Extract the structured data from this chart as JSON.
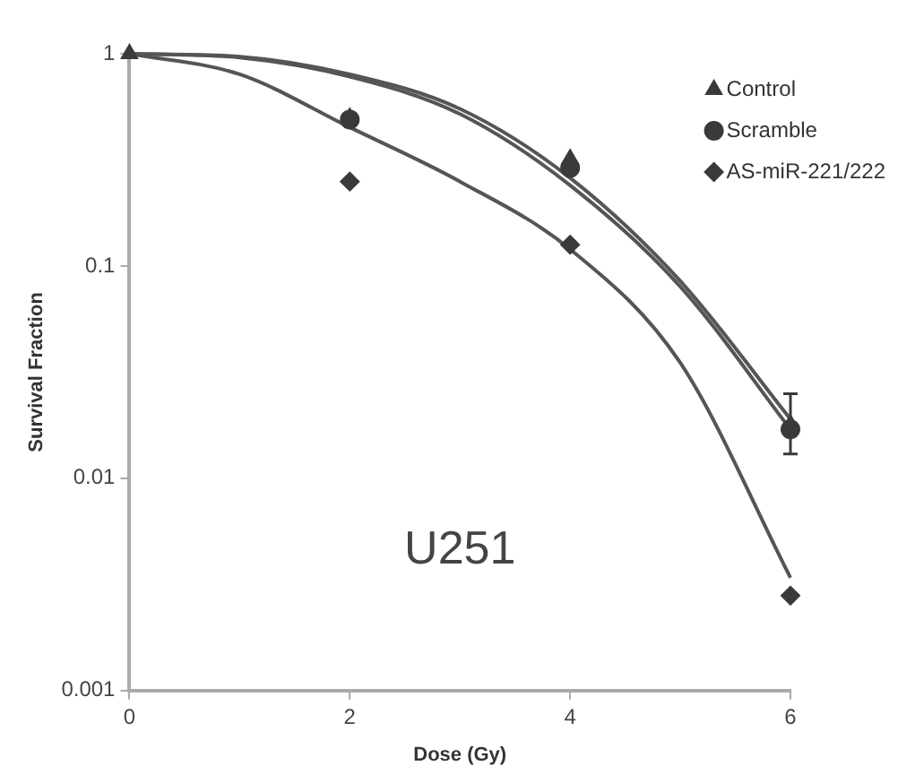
{
  "chart_data": {
    "type": "scatter",
    "xlabel": "Dose (Gy)",
    "ylabel": "Survival Fraction",
    "annotations": [
      "U251"
    ],
    "x": [
      0,
      2,
      4,
      6
    ],
    "log": "y",
    "xlim": [
      0,
      6
    ],
    "xticks": [
      0,
      2,
      4,
      6
    ],
    "ylim": [
      0.001,
      1
    ],
    "yticks": [
      0.001,
      0.01,
      0.1,
      1
    ],
    "grid": false,
    "legend": "top right",
    "series": [
      {
        "name": "Control",
        "color": "#3a3a3a",
        "marker": "triangle",
        "values": [
          1,
          0.5,
          0.32,
          0.018
        ],
        "errors": [
          null,
          null,
          null,
          [
            0.013,
            0.025
          ]
        ]
      },
      {
        "name": "Scramble",
        "color": "#3a3a3a",
        "marker": "circle",
        "values": [
          null,
          0.49,
          0.29,
          0.017
        ]
      },
      {
        "name": "AS-miR-221/222",
        "color": "#3a3a3a",
        "marker": "diamond",
        "values": [
          null,
          0.25,
          0.126,
          0.0028
        ]
      },
      {
        "type": "line",
        "color": "#555555",
        "marker": "none",
        "x": [
          0,
          1,
          2,
          3,
          4,
          5,
          6
        ],
        "values": [
          1,
          0.97,
          0.8,
          0.55,
          0.26,
          0.085,
          0.019
        ]
      },
      {
        "type": "line",
        "color": "#555555",
        "marker": "none",
        "x": [
          0,
          1,
          2,
          3,
          4,
          5,
          6
        ],
        "values": [
          1,
          0.96,
          0.78,
          0.52,
          0.24,
          0.08,
          0.017
        ]
      },
      {
        "type": "line",
        "color": "#555555",
        "marker": "none",
        "x": [
          0,
          1,
          2,
          3,
          4,
          5,
          6
        ],
        "values": [
          1,
          0.8,
          0.45,
          0.25,
          0.12,
          0.035,
          0.0034
        ]
      }
    ]
  }
}
